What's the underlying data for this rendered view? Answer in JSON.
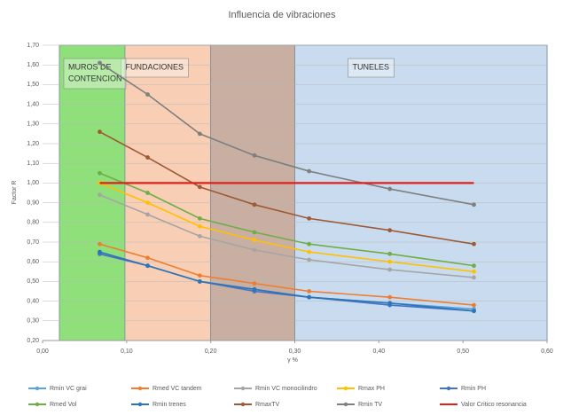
{
  "chart_data": {
    "type": "line",
    "title": "Influencia de vibraciones",
    "x_label": "γ %",
    "y_label": "Factor R",
    "xlim": [
      0,
      0.6
    ],
    "ylim": [
      0.2,
      1.7
    ],
    "xticks": [
      {
        "value": 0,
        "label": "0,00"
      },
      {
        "value": 0.1,
        "label": "0,10"
      },
      {
        "value": 0.2,
        "label": "0,20"
      },
      {
        "value": 0.3,
        "label": "0,30"
      },
      {
        "value": 0.4,
        "label": "0,40"
      },
      {
        "value": 0.5,
        "label": "0,50"
      },
      {
        "value": 0.6,
        "label": "0,60"
      }
    ],
    "yticks": [
      {
        "value": 0.2,
        "label": "0,20"
      },
      {
        "value": 0.3,
        "label": "0,30"
      },
      {
        "value": 0.4,
        "label": "0,40"
      },
      {
        "value": 0.5,
        "label": "0,50"
      },
      {
        "value": 0.6,
        "label": "0,60"
      },
      {
        "value": 0.7,
        "label": "0,70"
      },
      {
        "value": 0.8,
        "label": "0,80"
      },
      {
        "value": 0.9,
        "label": "0,90"
      },
      {
        "value": 1.0,
        "label": "1,00"
      },
      {
        "value": 1.1,
        "label": "1,10"
      },
      {
        "value": 1.2,
        "label": "1,20"
      },
      {
        "value": 1.3,
        "label": "1,30"
      },
      {
        "value": 1.4,
        "label": "1,40"
      },
      {
        "value": 1.5,
        "label": "1,50"
      },
      {
        "value": 1.6,
        "label": "1,60"
      },
      {
        "value": 1.7,
        "label": "1,70"
      }
    ],
    "grid": true,
    "regions": [
      {
        "x": [
          0.088,
          0.6
        ],
        "color": "#c9dcef"
      },
      {
        "x": [
          0.088,
          0.2
        ],
        "color": "#f8cfb4",
        "label": [
          "FUNDACIONES"
        ]
      },
      {
        "x": [
          0.2,
          0.3
        ],
        "color": "#c9aea2"
      },
      {
        "x": [
          0.3,
          0.6
        ],
        "color": "#c9dcef",
        "label": [
          "TUNELES"
        ]
      },
      {
        "x": [
          0.02,
          0.098
        ],
        "color": "#8fe07a",
        "label": [
          "MUROS DE",
          "CONTENCION"
        ]
      }
    ],
    "x": [
      0.068,
      0.125,
      0.187,
      0.252,
      0.317,
      0.413,
      0.513
    ],
    "series": [
      {
        "name": "Rmin VC grai",
        "color": "#5ba3d9",
        "values": [
          0.64,
          0.58,
          0.5,
          0.46,
          0.42,
          0.39,
          0.36
        ]
      },
      {
        "name": "Rmed VC tandem",
        "color": "#ed7d31",
        "values": [
          0.69,
          0.62,
          0.53,
          0.49,
          0.45,
          0.42,
          0.38
        ]
      },
      {
        "name": "Rmin VC monocilindro",
        "color": "#a5a5a5",
        "values": [
          0.94,
          0.84,
          0.73,
          0.66,
          0.61,
          0.56,
          0.52
        ]
      },
      {
        "name": "Rmax PH",
        "color": "#ffc000",
        "values": [
          1.0,
          0.9,
          0.78,
          0.71,
          0.65,
          0.6,
          0.55
        ]
      },
      {
        "name": "Rmin PH",
        "color": "#4472c4",
        "values": [
          0.64,
          0.58,
          0.5,
          0.45,
          0.42,
          0.38,
          0.35
        ]
      },
      {
        "name": "Rmed Vol",
        "color": "#70ad47",
        "values": [
          1.05,
          0.95,
          0.82,
          0.75,
          0.69,
          0.64,
          0.58
        ]
      },
      {
        "name": "Rmin trenes",
        "color": "#2e75b6",
        "values": [
          0.65,
          0.58,
          0.5,
          0.46,
          0.42,
          0.39,
          0.35
        ]
      },
      {
        "name": "RmaxTV",
        "color": "#9e5a36",
        "values": [
          1.26,
          1.13,
          0.98,
          0.89,
          0.82,
          0.76,
          0.69
        ]
      },
      {
        "name": "Rmin TV",
        "color": "#7f7f7f",
        "values": [
          1.61,
          1.45,
          1.25,
          1.14,
          1.06,
          0.97,
          0.89
        ]
      },
      {
        "name": "Valor Critico resonancia",
        "color": "#e0201b",
        "markers": false,
        "values": [
          1.0,
          1.0,
          1.0,
          1.0,
          1.0,
          1.0,
          1.0
        ]
      }
    ]
  }
}
